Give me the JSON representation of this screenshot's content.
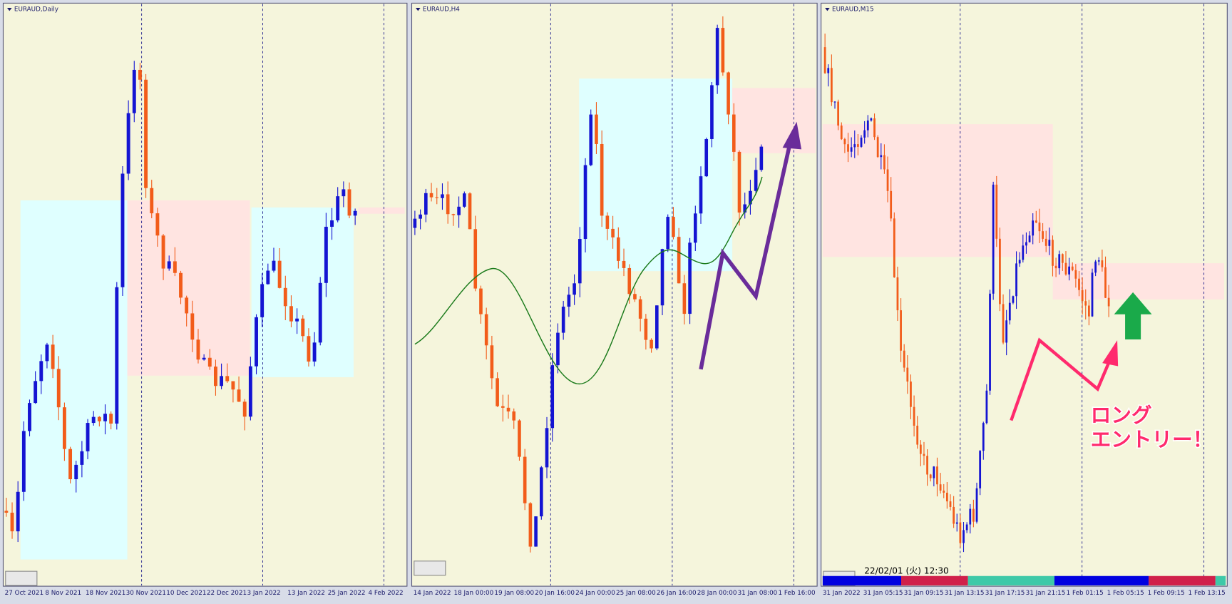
{
  "panels": [
    {
      "title": "EURAUD,Daily",
      "xlabels": [
        "27 Oct 2021",
        "8 Nov 2021",
        "18 Nov 2021",
        "30 Nov 2021",
        "10 Dec 2021",
        "22 Dec 2021",
        "3 Jan 2022",
        "13 Jan 2022",
        "25 Jan 2022",
        "4 Feb 2022"
      ]
    },
    {
      "title": "EURAUD,H4",
      "xlabels": [
        "14 Jan 2022",
        "18 Jan 00:00",
        "19 Jan 08:00",
        "20 Jan 16:00",
        "24 Jan 00:00",
        "25 Jan 08:00",
        "26 Jan 16:00",
        "28 Jan 00:00",
        "31 Jan 08:00",
        "1 Feb 16:00"
      ]
    },
    {
      "title": "EURAUD,M15",
      "xlabels": [
        "31 Jan 2022",
        "31 Jan 05:15",
        "31 Jan 09:15",
        "31 Jan 13:15",
        "31 Jan 17:15",
        "31 Jan 21:15",
        "1 Feb 01:15",
        "1 Feb 05:15",
        "1 Feb 09:15",
        "1 Feb 13:15"
      ],
      "timestamp": "22/02/01 (火) 12:30"
    }
  ],
  "annotation": [
    "ロング",
    "エントリー！"
  ]
}
